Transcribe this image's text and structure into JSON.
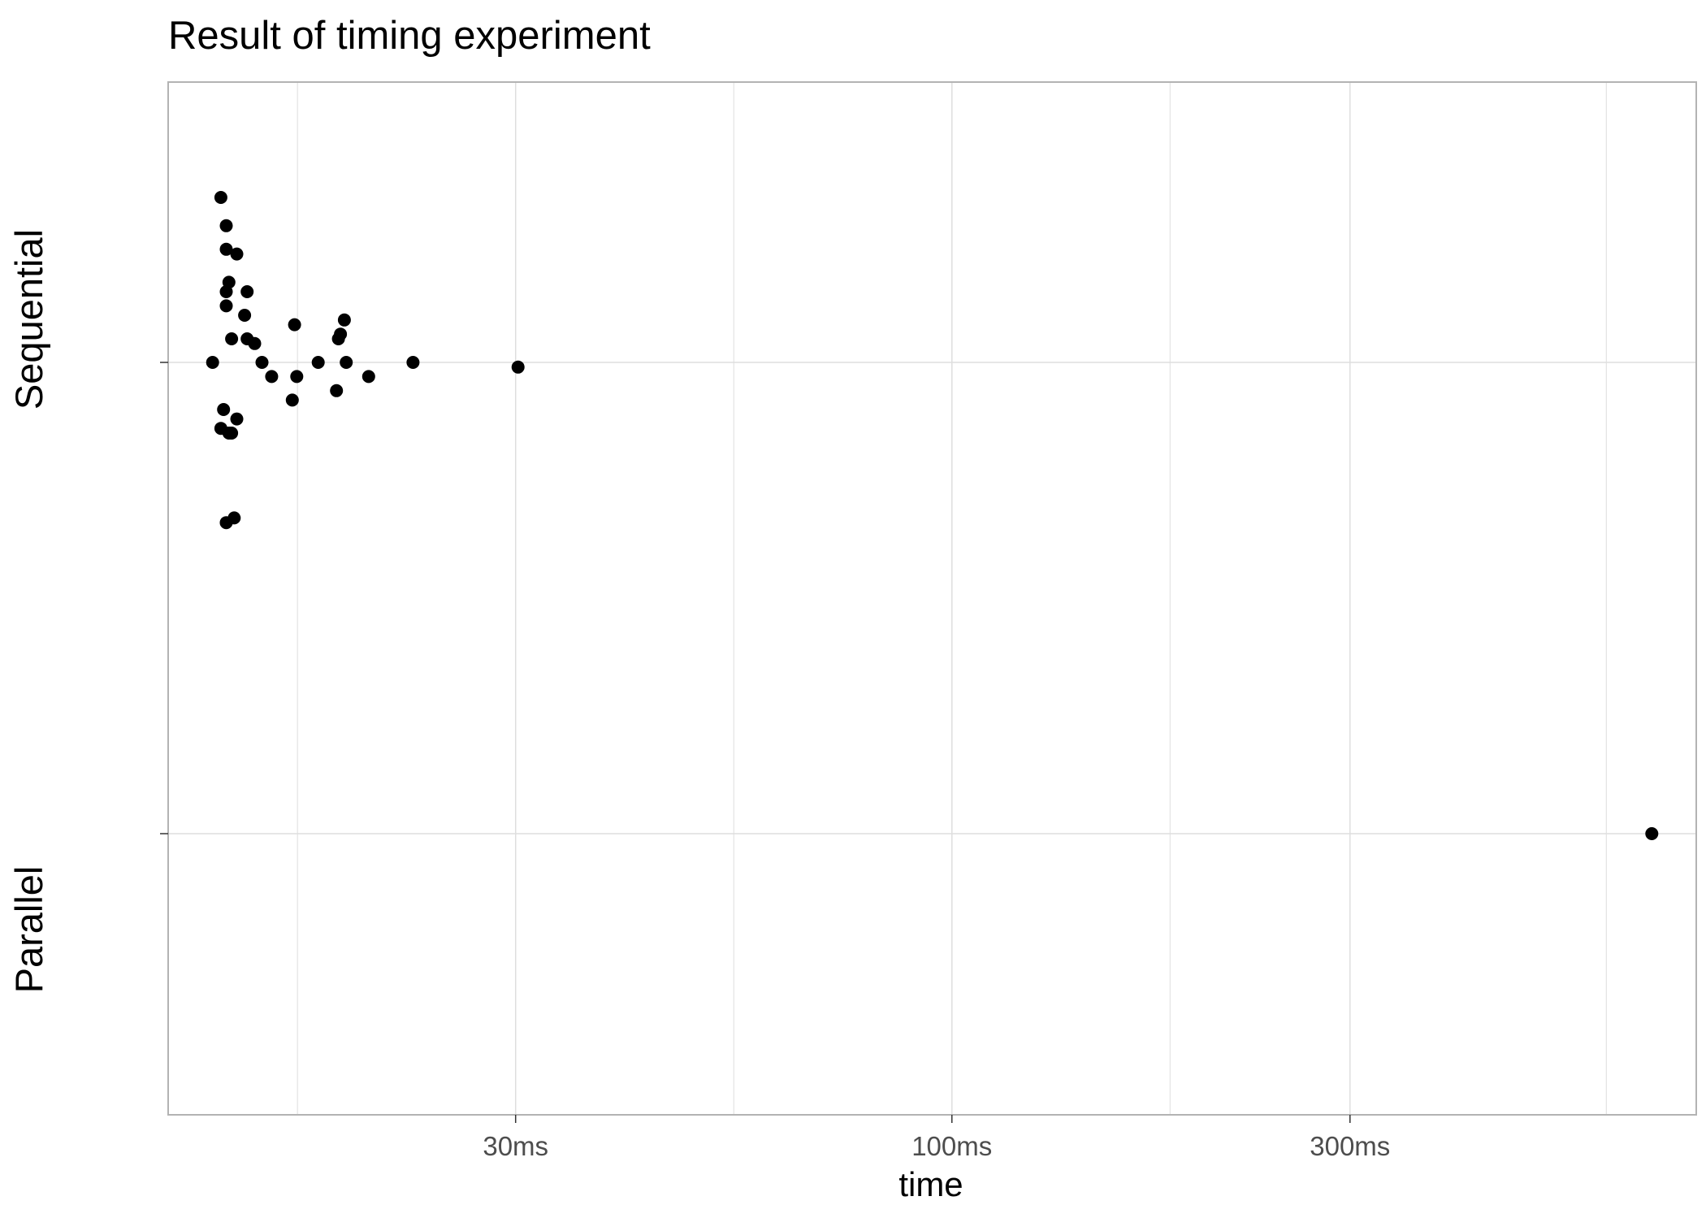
{
  "chart_data": {
    "type": "scatter",
    "title": "Result of timing experiment",
    "xlabel": "time",
    "ylabel": "",
    "x_scale": "log10",
    "x_unit": "ms",
    "xlim": [
      11.5,
      780
    ],
    "x_ticks": [
      {
        "value": 30,
        "label": "30ms"
      },
      {
        "value": 100,
        "label": "100ms"
      },
      {
        "value": 300,
        "label": "300ms"
      }
    ],
    "categories": [
      "Sequential",
      "Parallel"
    ],
    "grid": true,
    "legend": "none",
    "colors": {
      "points": "#000000",
      "grid": "#dedede",
      "frame": "#b3b3b3"
    },
    "series": [
      {
        "category": "Sequential",
        "x": [
          13.0,
          13.3,
          13.5,
          13.5,
          13.3,
          13.6,
          13.7,
          13.5,
          13.8,
          13.7,
          14.3,
          13.9,
          13.9,
          14.2,
          13.5,
          13.4,
          14.6,
          14.3,
          14.9,
          15.3,
          16.3,
          16.4,
          16.2,
          17.4,
          18.5,
          18.4,
          18.7,
          18.8,
          18.3,
          20.0,
          22.6,
          30.2,
          13.6,
          13.5
        ],
        "offset": [
          0.0,
          0.35,
          0.24,
          0.15,
          -0.14,
          -0.15,
          -0.15,
          -0.34,
          -0.33,
          0.05,
          0.05,
          0.23,
          -0.12,
          0.1,
          0.12,
          -0.1,
          0.04,
          0.15,
          0.0,
          -0.03,
          0.08,
          -0.03,
          -0.08,
          0.0,
          0.06,
          0.05,
          0.09,
          0.0,
          -0.06,
          -0.03,
          0.0,
          -0.01,
          0.17,
          0.29
        ]
      },
      {
        "category": "Parallel",
        "x": [
          690
        ],
        "offset": [
          0.0
        ]
      }
    ]
  }
}
